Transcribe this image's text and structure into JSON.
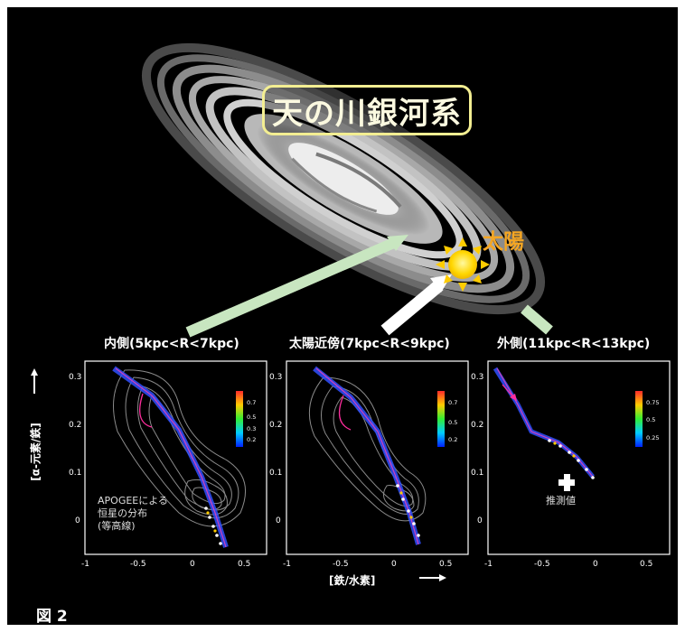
{
  "title": "天の川銀河系",
  "sun_label": "太陽",
  "panels": [
    {
      "label": "内側(5kpc<R<7kpc)",
      "cbar_ticks": [
        "0.7",
        "0.5",
        "0.3",
        "0.2"
      ]
    },
    {
      "label": "太陽近傍(7kpc<R<9kpc)",
      "cbar_ticks": [
        "0.7",
        "0.5",
        "0.2"
      ]
    },
    {
      "label": "外側(11kpc<R<13kpc)",
      "cbar_ticks": [
        "0.75",
        "0.5",
        "0.25"
      ]
    }
  ],
  "annotations": {
    "apogee_line1": "APOGEEによる",
    "apogee_line2": "恒星の分布",
    "apogee_line3": "(等高線)",
    "estimate": "推測値"
  },
  "axes": {
    "xlabel": "[鉄/水素]",
    "ylabel": "[α-元素/鉄]",
    "x_ticks": [
      "-1",
      "-0.5",
      "0",
      "0.5"
    ],
    "y_ticks": [
      "0.3",
      "0.2",
      "0.1",
      "0"
    ]
  },
  "figure_label": "図 2",
  "colors": {
    "background": "#000000",
    "title_border": "#f3ee92",
    "sun": "#f5a623",
    "arrow_green": "#c8e6c0",
    "arrow_white": "#ffffff",
    "track": "#ff2d9e"
  }
}
